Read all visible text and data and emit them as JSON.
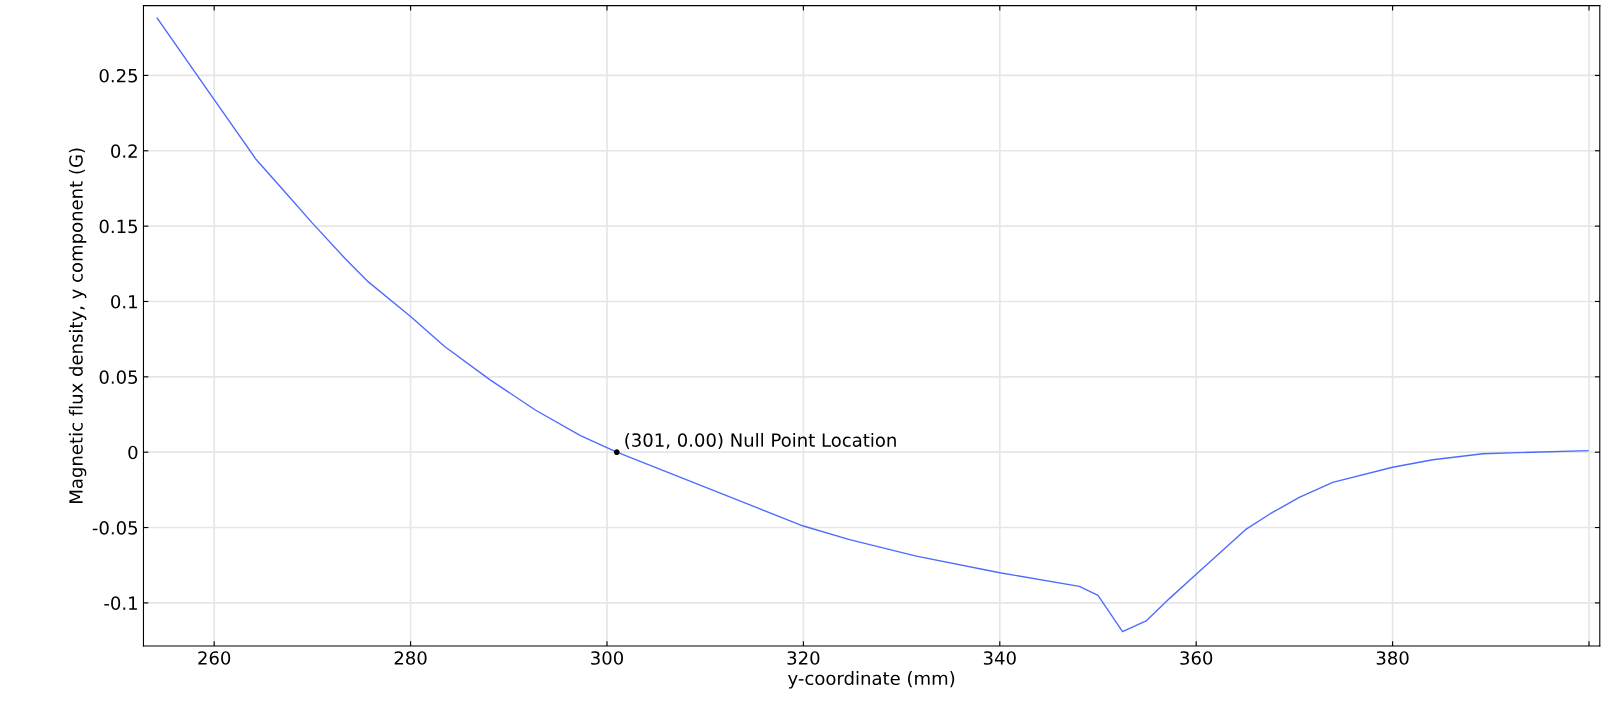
{
  "chart_data": {
    "type": "line",
    "xlabel": "y-coordinate (mm)",
    "ylabel": "Magnetic flux density, y component (G)",
    "series": [
      {
        "color": "#4f6bff",
        "x": [
          254.2,
          260,
          264.3,
          267.3,
          270.0,
          273.4,
          275.7,
          280,
          283.5,
          288.1,
          292.7,
          297.3,
          301,
          320,
          324.7,
          331.5,
          340,
          348.1,
          350.0,
          352.5,
          354.9,
          357.3,
          360,
          365.1,
          367.5,
          370.5,
          373.9,
          380,
          384.1,
          389.2,
          394.2,
          399.9
        ],
        "values": [
          0.288,
          0.234,
          0.194,
          0.172,
          0.152,
          0.128,
          0.113,
          0.09,
          0.07,
          0.048,
          0.028,
          0.011,
          0.0,
          -0.049,
          -0.058,
          -0.069,
          -0.08,
          -0.089,
          -0.095,
          -0.119,
          -0.112,
          -0.097,
          -0.081,
          -0.051,
          -0.041,
          -0.03,
          -0.02,
          -0.01,
          -0.005,
          -0.001,
          0.0,
          0.001
        ]
      },
      {
        "type": "scatter",
        "color": "#000000",
        "x": [
          301
        ],
        "values": [
          0.0
        ],
        "marker": "circle"
      }
    ],
    "annotations": [
      {
        "text": "(301, 0.00) Null Point Location",
        "x": 301,
        "y": 0.0
      }
    ],
    "xlim": [
      252.8,
      401.1
    ],
    "ylim": [
      -0.1286,
      0.2963
    ],
    "xticks": [
      260,
      280,
      300,
      320,
      340,
      360,
      380,
      {
        "value": 400,
        "label": null
      }
    ],
    "yticks": [
      -0.1,
      -0.05,
      0,
      0.05,
      0.1,
      0.15,
      0.2,
      0.25
    ],
    "grid": true
  }
}
